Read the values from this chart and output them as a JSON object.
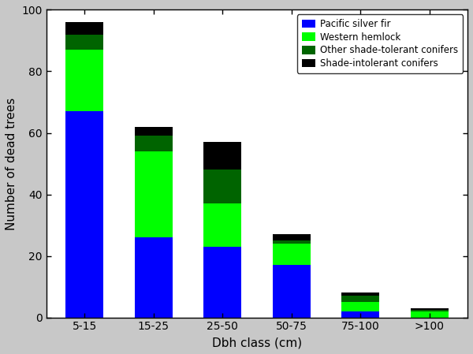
{
  "categories": [
    "5-15",
    "15-25",
    "25-50",
    "50-75",
    "75-100",
    ">100"
  ],
  "pacific_silver_fir": [
    67,
    26,
    23,
    17,
    2,
    0
  ],
  "western_hemlock": [
    20,
    28,
    14,
    7,
    3,
    2
  ],
  "other_shade_tolerant": [
    5,
    5,
    11,
    1,
    2,
    0.5
  ],
  "shade_intolerant": [
    4,
    3,
    9,
    2,
    1,
    0.5
  ],
  "colors": {
    "pacific_silver_fir": "#0000FF",
    "western_hemlock": "#00FF00",
    "other_shade_tolerant": "#006400",
    "shade_intolerant": "#000000"
  },
  "ylabel": "Number of dead trees",
  "xlabel": "Dbh class (cm)",
  "ylim": [
    0,
    100
  ],
  "yticks": [
    0,
    20,
    40,
    60,
    80,
    100
  ],
  "legend_labels": [
    "Pacific silver fir",
    "Western hemlock",
    "Other shade-tolerant conifers",
    "Shade-intolerant conifers"
  ],
  "bar_width": 0.55,
  "fig_bg": "#c8c8c8",
  "plot_bg": "#ffffff"
}
